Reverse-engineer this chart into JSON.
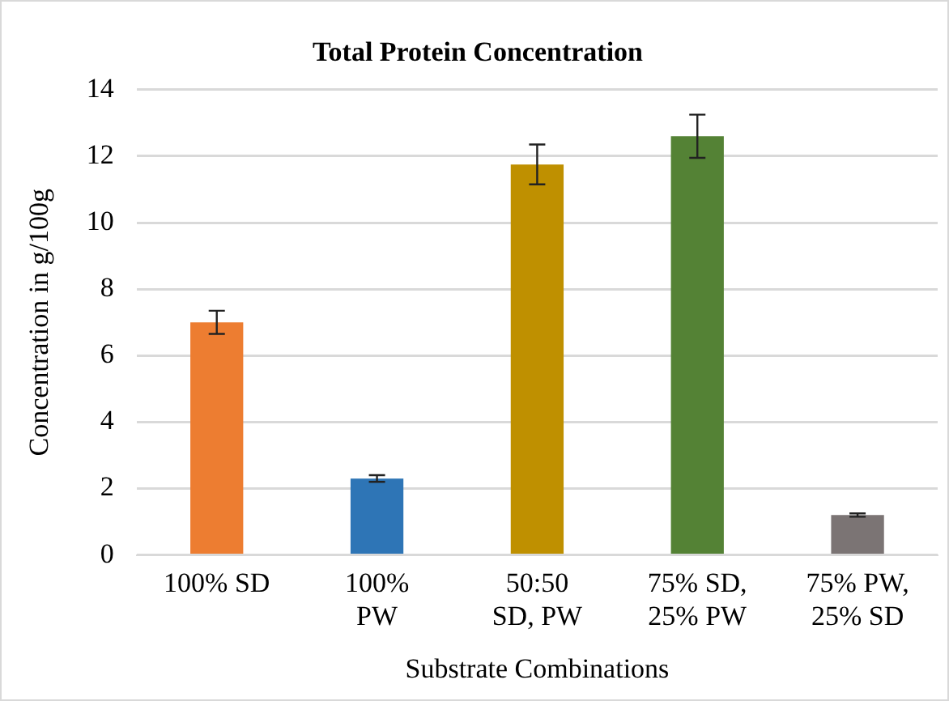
{
  "chart_data": {
    "type": "bar",
    "title": "Total Protein Concentration",
    "xlabel": "Substrate Combinations",
    "ylabel": "Concentration in g/100g",
    "categories": [
      "100% SD",
      "100% PW",
      "50:50 SD, PW",
      "75% SD, 25% PW",
      "75% PW, 25% SD"
    ],
    "values": [
      7.0,
      2.3,
      11.75,
      12.6,
      1.2
    ],
    "colors": [
      "#ed7d31",
      "#2e75b6",
      "#bf9000",
      "#548235",
      "#7b7474"
    ],
    "errors": [
      0.35,
      0.1,
      0.6,
      0.65,
      0.05
    ],
    "ylim": [
      0,
      14
    ],
    "yticks": [
      0,
      2,
      4,
      6,
      8,
      10,
      12,
      14
    ],
    "grid": "y",
    "legend": false
  }
}
